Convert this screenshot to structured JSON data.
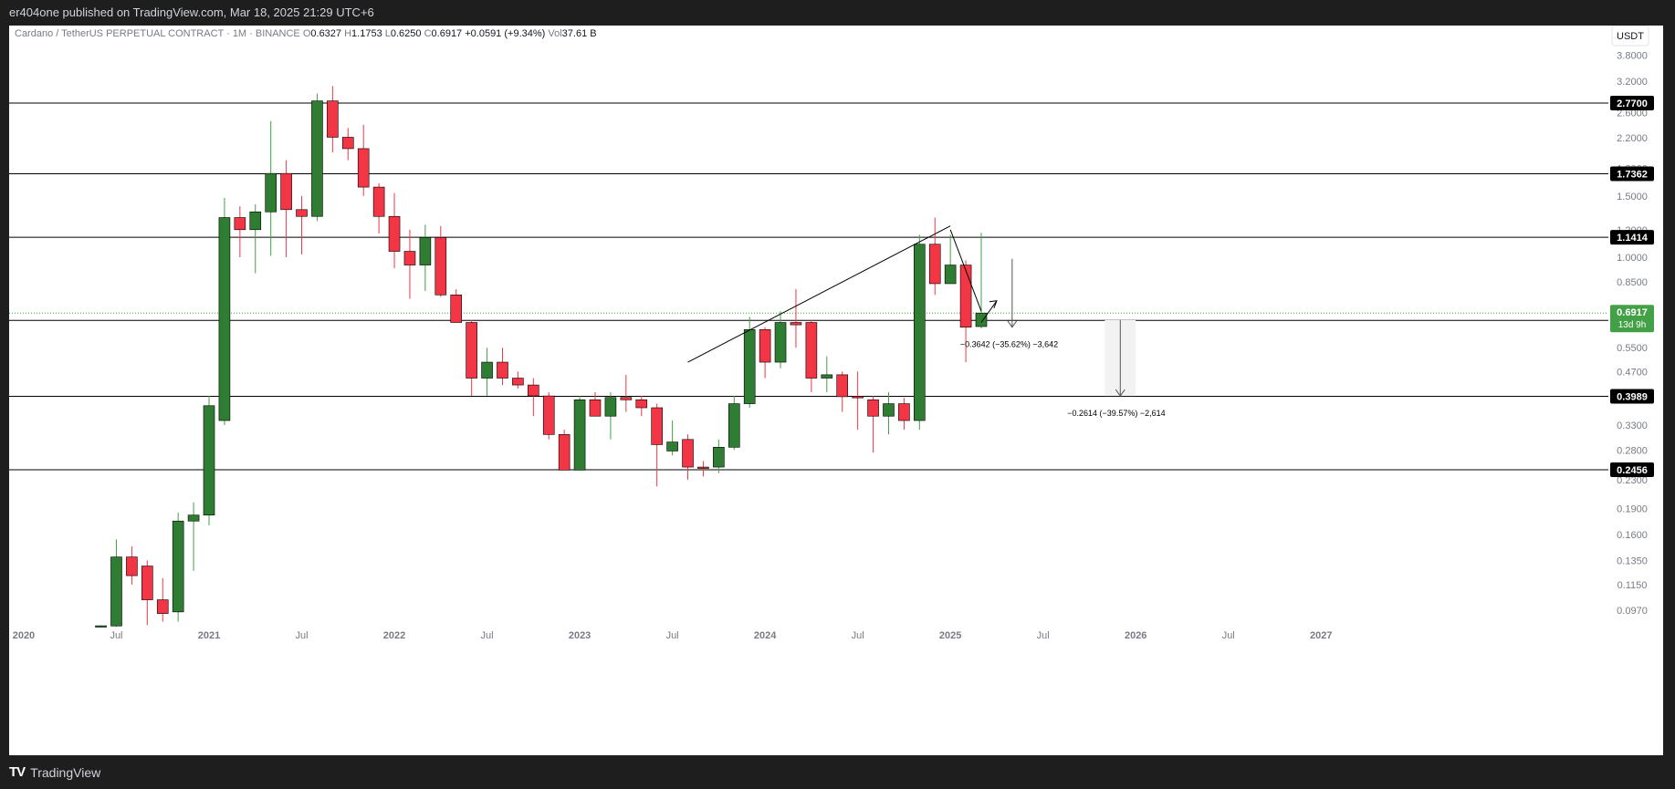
{
  "publisher": {
    "author": "er404one",
    "text": "er404one published on TradingView.com, Mar 18, 2025 21:29 UTC+6"
  },
  "brand": {
    "name": "TradingView",
    "logo": "TV"
  },
  "legend": {
    "symbol": "Cardano / TetherUS PERPETUAL CONTRACT · 1M · BINANCE",
    "o_label": "O",
    "o": "0.6327",
    "h_label": "H",
    "h": "1.1753",
    "l_label": "L",
    "l": "0.6250",
    "c_label": "C",
    "c": "0.6917",
    "change": "+0.0591 (+9.34%)",
    "vol_label": "Vol",
    "vol": "37.61 B"
  },
  "currency_button": "USDT",
  "colors": {
    "up": "#2e7d32",
    "down": "#f23645",
    "up_wick": "#43a047",
    "down_wick": "#f23645",
    "level": "#000000",
    "current_price": "#43a047",
    "background": "#ffffff",
    "dark_frame": "#1e1e1e"
  },
  "chart_data": {
    "type": "candlestick",
    "timeframe": "1M",
    "y_scale": "log",
    "ylim": [
      0.088,
      4.2
    ],
    "y_ticks": [
      "3.8000",
      "3.2000",
      "2.6000",
      "2.2000",
      "1.8000",
      "1.5000",
      "1.2000",
      "1.0000",
      "0.8500",
      "0.5500",
      "0.4700",
      "0.3300",
      "0.2800",
      "0.2300",
      "0.1900",
      "0.1600",
      "0.1350",
      "0.1150",
      "0.0970"
    ],
    "x_labels": [
      {
        "date": "2020-01",
        "label": "2020"
      },
      {
        "date": "2020-07",
        "label": "Jul"
      },
      {
        "date": "2021-01",
        "label": "2021"
      },
      {
        "date": "2021-07",
        "label": "Jul"
      },
      {
        "date": "2022-01",
        "label": "2022"
      },
      {
        "date": "2022-07",
        "label": "Jul"
      },
      {
        "date": "2023-01",
        "label": "2023"
      },
      {
        "date": "2023-07",
        "label": "Jul"
      },
      {
        "date": "2024-01",
        "label": "2024"
      },
      {
        "date": "2024-07",
        "label": "Jul"
      },
      {
        "date": "2025-01",
        "label": "2025"
      },
      {
        "date": "2025-07",
        "label": "Jul"
      },
      {
        "date": "2026-01",
        "label": "2026"
      },
      {
        "date": "2026-07",
        "label": "Jul"
      },
      {
        "date": "2027-01",
        "label": "2027"
      }
    ],
    "candles": [
      {
        "t": "2020-06",
        "o": 0.0874,
        "h": 0.0878,
        "l": 0.0872,
        "c": 0.0876
      },
      {
        "t": "2020-07",
        "o": 0.0875,
        "h": 0.155,
        "l": 0.087,
        "c": 0.138
      },
      {
        "t": "2020-08",
        "o": 0.138,
        "h": 0.148,
        "l": 0.115,
        "c": 0.122
      },
      {
        "t": "2020-09",
        "o": 0.13,
        "h": 0.135,
        "l": 0.088,
        "c": 0.104
      },
      {
        "t": "2020-10",
        "o": 0.104,
        "h": 0.12,
        "l": 0.09,
        "c": 0.095
      },
      {
        "t": "2020-11",
        "o": 0.096,
        "h": 0.185,
        "l": 0.09,
        "c": 0.175
      },
      {
        "t": "2020-12",
        "o": 0.175,
        "h": 0.198,
        "l": 0.126,
        "c": 0.182
      },
      {
        "t": "2021-01",
        "o": 0.182,
        "h": 0.4,
        "l": 0.17,
        "c": 0.375
      },
      {
        "t": "2021-02",
        "o": 0.34,
        "h": 1.48,
        "l": 0.33,
        "c": 1.3
      },
      {
        "t": "2021-03",
        "o": 1.3,
        "h": 1.4,
        "l": 1.0,
        "c": 1.2
      },
      {
        "t": "2021-04",
        "o": 1.2,
        "h": 1.42,
        "l": 0.9,
        "c": 1.35
      },
      {
        "t": "2021-05",
        "o": 1.35,
        "h": 2.46,
        "l": 1.01,
        "c": 1.74
      },
      {
        "t": "2021-06",
        "o": 1.74,
        "h": 1.9,
        "l": 1.0,
        "c": 1.37
      },
      {
        "t": "2021-07",
        "o": 1.37,
        "h": 1.5,
        "l": 1.02,
        "c": 1.31
      },
      {
        "t": "2021-08",
        "o": 1.31,
        "h": 2.95,
        "l": 1.27,
        "c": 2.81
      },
      {
        "t": "2021-09",
        "o": 2.81,
        "h": 3.1,
        "l": 2.0,
        "c": 2.21
      },
      {
        "t": "2021-10",
        "o": 2.21,
        "h": 2.35,
        "l": 1.9,
        "c": 2.05
      },
      {
        "t": "2021-11",
        "o": 2.05,
        "h": 2.4,
        "l": 1.5,
        "c": 1.59
      },
      {
        "t": "2021-12",
        "o": 1.59,
        "h": 1.63,
        "l": 1.17,
        "c": 1.31
      },
      {
        "t": "2022-01",
        "o": 1.31,
        "h": 1.53,
        "l": 0.93,
        "c": 1.04
      },
      {
        "t": "2022-02",
        "o": 1.04,
        "h": 1.2,
        "l": 0.76,
        "c": 0.95
      },
      {
        "t": "2022-03",
        "o": 0.95,
        "h": 1.24,
        "l": 0.8,
        "c": 1.14
      },
      {
        "t": "2022-04",
        "o": 1.14,
        "h": 1.23,
        "l": 0.77,
        "c": 0.78
      },
      {
        "t": "2022-05",
        "o": 0.78,
        "h": 0.81,
        "l": 0.66,
        "c": 0.65
      },
      {
        "t": "2022-06",
        "o": 0.65,
        "h": 0.66,
        "l": 0.4,
        "c": 0.45
      },
      {
        "t": "2022-07",
        "o": 0.45,
        "h": 0.55,
        "l": 0.4,
        "c": 0.5
      },
      {
        "t": "2022-08",
        "o": 0.5,
        "h": 0.55,
        "l": 0.43,
        "c": 0.45
      },
      {
        "t": "2022-09",
        "o": 0.45,
        "h": 0.47,
        "l": 0.42,
        "c": 0.43
      },
      {
        "t": "2022-10",
        "o": 0.43,
        "h": 0.45,
        "l": 0.35,
        "c": 0.4
      },
      {
        "t": "2022-11",
        "o": 0.4,
        "h": 0.41,
        "l": 0.3,
        "c": 0.31
      },
      {
        "t": "2022-12",
        "o": 0.31,
        "h": 0.32,
        "l": 0.245,
        "c": 0.245
      },
      {
        "t": "2023-01",
        "o": 0.245,
        "h": 0.4,
        "l": 0.245,
        "c": 0.39
      },
      {
        "t": "2023-02",
        "o": 0.39,
        "h": 0.41,
        "l": 0.35,
        "c": 0.35
      },
      {
        "t": "2023-03",
        "o": 0.35,
        "h": 0.41,
        "l": 0.3,
        "c": 0.396
      },
      {
        "t": "2023-04",
        "o": 0.396,
        "h": 0.46,
        "l": 0.36,
        "c": 0.39
      },
      {
        "t": "2023-05",
        "o": 0.39,
        "h": 0.4,
        "l": 0.35,
        "c": 0.37
      },
      {
        "t": "2023-06",
        "o": 0.37,
        "h": 0.38,
        "l": 0.22,
        "c": 0.29
      },
      {
        "t": "2023-07",
        "o": 0.278,
        "h": 0.34,
        "l": 0.27,
        "c": 0.295
      },
      {
        "t": "2023-08",
        "o": 0.3,
        "h": 0.31,
        "l": 0.23,
        "c": 0.25
      },
      {
        "t": "2023-09",
        "o": 0.25,
        "h": 0.26,
        "l": 0.235,
        "c": 0.249
      },
      {
        "t": "2023-10",
        "o": 0.25,
        "h": 0.3,
        "l": 0.24,
        "c": 0.285
      },
      {
        "t": "2023-11",
        "o": 0.285,
        "h": 0.4,
        "l": 0.28,
        "c": 0.38
      },
      {
        "t": "2023-12",
        "o": 0.38,
        "h": 0.675,
        "l": 0.37,
        "c": 0.62
      },
      {
        "t": "2024-01",
        "o": 0.62,
        "h": 0.63,
        "l": 0.45,
        "c": 0.5
      },
      {
        "t": "2024-02",
        "o": 0.5,
        "h": 0.7,
        "l": 0.48,
        "c": 0.65
      },
      {
        "t": "2024-03",
        "o": 0.65,
        "h": 0.81,
        "l": 0.55,
        "c": 0.64
      },
      {
        "t": "2024-04",
        "o": 0.65,
        "h": 0.66,
        "l": 0.41,
        "c": 0.45
      },
      {
        "t": "2024-05",
        "o": 0.45,
        "h": 0.52,
        "l": 0.41,
        "c": 0.46
      },
      {
        "t": "2024-06",
        "o": 0.46,
        "h": 0.47,
        "l": 0.36,
        "c": 0.398
      },
      {
        "t": "2024-07",
        "o": 0.399,
        "h": 0.47,
        "l": 0.32,
        "c": 0.395
      },
      {
        "t": "2024-08",
        "o": 0.39,
        "h": 0.4,
        "l": 0.275,
        "c": 0.35
      },
      {
        "t": "2024-09",
        "o": 0.35,
        "h": 0.41,
        "l": 0.31,
        "c": 0.38
      },
      {
        "t": "2024-10",
        "o": 0.38,
        "h": 0.395,
        "l": 0.32,
        "c": 0.34
      },
      {
        "t": "2024-11",
        "o": 0.34,
        "h": 1.16,
        "l": 0.32,
        "c": 1.09
      },
      {
        "t": "2024-12",
        "o": 1.09,
        "h": 1.3,
        "l": 0.78,
        "c": 0.84
      },
      {
        "t": "2025-01",
        "o": 0.84,
        "h": 1.16,
        "l": 0.84,
        "c": 0.95
      },
      {
        "t": "2025-02",
        "o": 0.95,
        "h": 0.98,
        "l": 0.5,
        "c": 0.63
      },
      {
        "t": "2025-03",
        "o": 0.6327,
        "h": 1.1753,
        "l": 0.625,
        "c": 0.6917
      }
    ],
    "horizontal_levels": [
      "2.7700",
      "1.7362",
      "1.1414",
      "0.6589",
      "0.3989",
      "0.2456"
    ],
    "current_price": {
      "value": "0.6917",
      "countdown": "13d 9h"
    },
    "trendlines": [
      {
        "from": {
          "t": "2023-08",
          "v": 0.5
        },
        "to": {
          "t": "2025-01",
          "v": 1.23
        }
      },
      {
        "from": {
          "t": "2025-01",
          "v": 1.2
        },
        "to": {
          "t": "2025-03",
          "v": 0.7
        }
      },
      {
        "from": {
          "t": "2025-03",
          "v": 0.65
        },
        "to": {
          "t": "2025-04",
          "v": 0.75
        }
      }
    ],
    "projections": [
      {
        "from": {
          "t": "2025-05",
          "v": 0.99
        },
        "to": {
          "t": "2025-05",
          "v": 0.63
        },
        "label": "−0.3642 (−35.62%) −3,642"
      },
      {
        "range_from": "2025-11",
        "range_to": "2026-01",
        "from": {
          "t": "2025-12",
          "v": 0.66
        },
        "to": {
          "t": "2025-12",
          "v": 0.4
        },
        "label": "−0.2614 (−39.57%) −2,614"
      }
    ]
  }
}
